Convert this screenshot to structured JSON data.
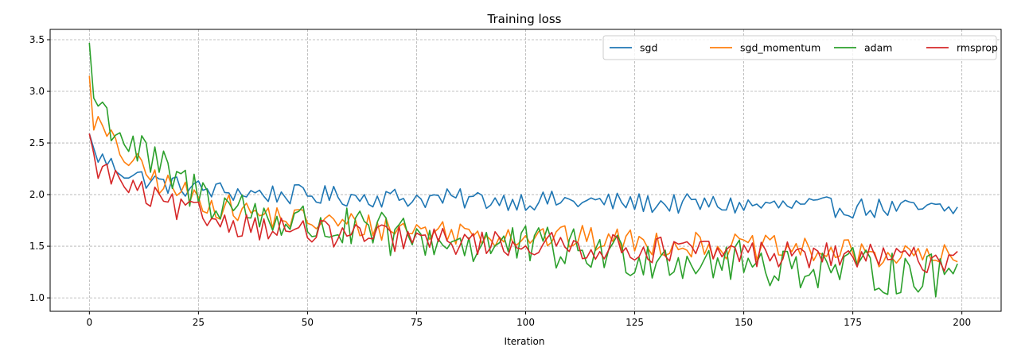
{
  "chart_data": {
    "type": "line",
    "title": "Training loss",
    "xlabel": "Iteration",
    "ylabel": "",
    "xlim": [
      -9,
      209
    ],
    "ylim": [
      0.87,
      3.6
    ],
    "xticks": [
      0,
      25,
      50,
      75,
      100,
      125,
      150,
      175,
      200
    ],
    "yticks": [
      1.0,
      1.5,
      2.0,
      2.5,
      3.0,
      3.5
    ],
    "xtick_labels": [
      "0",
      "25",
      "50",
      "75",
      "100",
      "125",
      "150",
      "175",
      "200"
    ],
    "ytick_labels": [
      "1.0",
      "1.5",
      "2.0",
      "2.5",
      "3.0",
      "3.5"
    ],
    "grid": true,
    "legend_position": "top-right",
    "series": [
      {
        "name": "sgd",
        "color": "#1f77b4",
        "start": 2.59,
        "end": 1.88,
        "plateau": 1.85,
        "rate": 0.03,
        "noise": 0.1
      },
      {
        "name": "sgd_momentum",
        "color": "#ff7f0e",
        "start": 3.15,
        "end": 1.35,
        "plateau": 1.38,
        "rate": 0.022,
        "noise": 0.13
      },
      {
        "name": "adam",
        "color": "#2ca02c",
        "start": 3.47,
        "end": 1.33,
        "plateau": 1.2,
        "rate": 0.018,
        "noise": 0.22
      },
      {
        "name": "rmsprop",
        "color": "#d62728",
        "start": 2.59,
        "end": 1.45,
        "plateau": 1.36,
        "rate": 0.018,
        "noise": 0.13
      }
    ]
  }
}
